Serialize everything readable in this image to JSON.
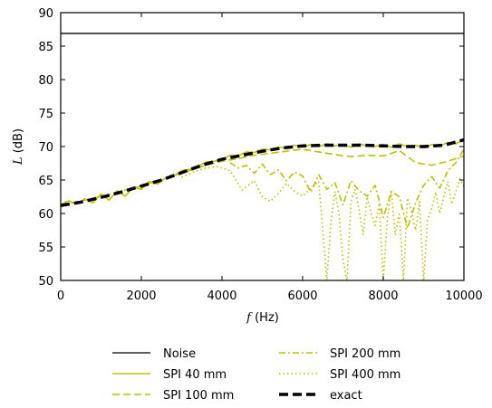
{
  "chart_data": {
    "type": "line",
    "xlabel_var": "f",
    "xlabel_unit": " (Hz)",
    "ylabel_var": "L",
    "ylabel_unit": " (dB)",
    "xlim": [
      0,
      10000
    ],
    "ylim": [
      50,
      90
    ],
    "xticks": [
      "0",
      "2000",
      "4000",
      "6000",
      "8000",
      "10000"
    ],
    "yticks": [
      "50",
      "55",
      "60",
      "65",
      "70",
      "75",
      "80",
      "85",
      "90"
    ],
    "grid": false,
    "legend_position": "bottom",
    "colors": {
      "olive": "#bfbf00",
      "black": "#000000"
    },
    "series": [
      {
        "name": "Noise",
        "style": "solid-thin",
        "color": "#000000",
        "x": [
          0,
          10000
        ],
        "y": [
          86.9,
          86.9
        ]
      },
      {
        "name": "SPI 40 mm",
        "style": "solid",
        "color": "#bfbf00",
        "x": [
          0,
          200,
          400,
          600,
          800,
          1000,
          1200,
          1400,
          1600,
          1800,
          2000,
          2200,
          2400,
          2600,
          2800,
          3000,
          3200,
          3400,
          3600,
          3800,
          4000,
          4200,
          4400,
          4600,
          4800,
          5000,
          5200,
          5400,
          5600,
          5800,
          6000,
          6200,
          6400,
          6600,
          6800,
          7000,
          7200,
          7400,
          7600,
          7800,
          8000,
          8200,
          8400,
          8600,
          8800,
          9000,
          9200,
          9400,
          9600,
          9800,
          10000
        ],
        "y": [
          61.3,
          61.9,
          61.4,
          62.2,
          61.6,
          62.9,
          62.0,
          63.4,
          62.6,
          63.9,
          63.6,
          64.8,
          64.4,
          65.3,
          65.6,
          66.4,
          66.6,
          67.0,
          67.7,
          67.8,
          68.0,
          68.7,
          68.6,
          69.2,
          69.1,
          69.6,
          69.5,
          69.9,
          69.8,
          70.2,
          69.9,
          70.3,
          70.0,
          70.4,
          70.1,
          70.3,
          69.9,
          70.4,
          70.1,
          70.0,
          70.3,
          69.9,
          70.4,
          70.0,
          70.2,
          69.8,
          70.3,
          70.1,
          70.6,
          70.4,
          71.1
        ]
      },
      {
        "name": "SPI 100 mm",
        "style": "dashed",
        "color": "#bfbf00",
        "x": [
          0,
          400,
          800,
          1200,
          1600,
          2000,
          2400,
          2800,
          3200,
          3600,
          4000,
          4400,
          4800,
          5200,
          5600,
          6000,
          6400,
          6800,
          7200,
          7600,
          8000,
          8400,
          8800,
          9200,
          9600,
          10000
        ],
        "y": [
          61.2,
          61.7,
          62.3,
          62.8,
          63.5,
          64.1,
          64.9,
          65.6,
          66.4,
          67.2,
          67.8,
          68.2,
          68.7,
          69.0,
          69.3,
          69.6,
          69.2,
          68.8,
          68.5,
          68.7,
          68.6,
          69.4,
          67.6,
          67.2,
          67.8,
          68.6
        ]
      },
      {
        "name": "SPI 200 mm",
        "style": "dashdot",
        "color": "#bfbf00",
        "x": [
          4200,
          4400,
          4600,
          4800,
          5000,
          5200,
          5400,
          5600,
          5800,
          6000,
          6200,
          6400,
          6600,
          6800,
          7000,
          7200,
          7400,
          7600,
          7800,
          8000,
          8200,
          8400,
          8600,
          8800,
          9000,
          9200,
          9400,
          9600,
          9800,
          10000
        ],
        "y": [
          67.6,
          66.8,
          67.2,
          66.0,
          67.4,
          65.8,
          66.5,
          64.9,
          66.2,
          65.6,
          63.2,
          65.8,
          63.6,
          64.6,
          61.3,
          64.9,
          63.4,
          62.6,
          64.2,
          59.4,
          63.3,
          62.5,
          57.8,
          61.6,
          64.2,
          65.5,
          63.8,
          66.4,
          67.6,
          69.6
        ]
      },
      {
        "name": "SPI 400 mm",
        "style": "dotted",
        "color": "#bfbf00",
        "x": [
          3000,
          3300,
          3600,
          3900,
          4200,
          4500,
          4800,
          5000,
          5200,
          5400,
          5600,
          5800,
          6000,
          6200,
          6400,
          6500,
          6600,
          6700,
          6800,
          6900,
          7000,
          7100,
          7200,
          7300,
          7400,
          7500,
          7600,
          7700,
          7800,
          7900,
          8000,
          8100,
          8200,
          8300,
          8400,
          8500,
          8600,
          8700,
          8800,
          8900,
          9000,
          9100,
          9200,
          9300,
          9400,
          9500,
          9600,
          9700,
          9800,
          9900,
          10000
        ],
        "y": [
          65.4,
          66.2,
          66.8,
          67.0,
          66.4,
          63.5,
          64.9,
          62.5,
          61.8,
          63.0,
          64.5,
          63.3,
          62.6,
          63.7,
          64.8,
          57.5,
          50.0,
          58.6,
          63.3,
          60.0,
          53.1,
          50.0,
          61.8,
          63.6,
          60.6,
          56.8,
          62.5,
          60.0,
          58.2,
          61.5,
          50.0,
          59.3,
          63.2,
          56.8,
          59.9,
          50.0,
          62.3,
          60.4,
          57.5,
          61.8,
          50.0,
          59.2,
          60.7,
          63.2,
          60.0,
          62.5,
          64.8,
          61.4,
          63.3,
          65.2,
          64.0
        ]
      },
      {
        "name": "exact",
        "style": "thick-dashed",
        "color": "#000000",
        "x": [
          0,
          500,
          1000,
          1500,
          2000,
          2500,
          3000,
          3500,
          4000,
          4500,
          5000,
          5500,
          6000,
          6500,
          7000,
          7500,
          8000,
          8500,
          9000,
          9500,
          10000
        ],
        "y": [
          61.2,
          61.7,
          62.4,
          63.2,
          64.1,
          65.0,
          66.1,
          67.2,
          68.1,
          68.7,
          69.3,
          69.8,
          70.1,
          70.2,
          70.2,
          70.2,
          70.1,
          70.0,
          70.0,
          70.2,
          71.0
        ]
      }
    ]
  }
}
